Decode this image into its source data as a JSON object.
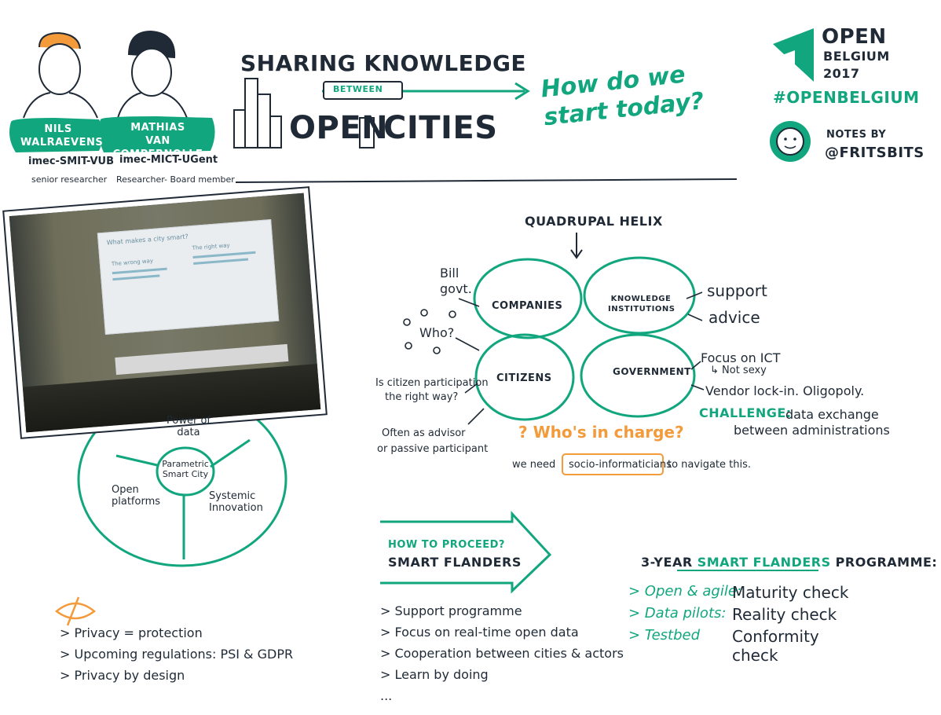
{
  "header": {
    "speaker1": {
      "name_line1": "NILS",
      "name_line2": "WALRAEVENS",
      "affiliation": "imec-SMIT-VUB",
      "role": "senior researcher"
    },
    "speaker2": {
      "name_line1": "MATHIAS",
      "name_line2": "VAN COMPERNOLLE",
      "affiliation": "imec-MICT-UGent",
      "role": "Researcher- Board member"
    },
    "title_line1": "SHARING KNOWLEDGE",
    "title_between": "BETWEEN",
    "title_open": "OPEN",
    "title_cities": "CITIES",
    "question": "How do we start today?",
    "event": {
      "line1": "OPEN",
      "line2": "BELGIUM",
      "line3": "2017",
      "hashtag": "#OPENBELGIUM"
    },
    "notes_by": {
      "label": "NOTES BY",
      "handle": "@FRITSBITS"
    }
  },
  "photo": {
    "slide_title": "What makes a city smart?",
    "wrong_way": "The wrong way",
    "right_way": "The right way"
  },
  "circle_diagram": {
    "power": "Power of data",
    "center": "Parametric Smart City",
    "open": "Open platforms",
    "systemic": "Systemic Innovation"
  },
  "helix": {
    "title": "QUADRUPAL HELIX",
    "companies": "COMPANIES",
    "knowledge": "KNOWLEDGE INSTITUTIONS",
    "citizens": "CITIZENS",
    "government": "GOVERNMENT",
    "bill": "Bill govt.",
    "who": "Who?",
    "support": "support",
    "advice": "advice",
    "focus": "Focus on ICT",
    "not_sexy": "↳ Not sexy",
    "vendor": "Vendor lock-in. Oligopoly.",
    "challenge_label": "CHALLENGE:",
    "challenge_text1": "data exchange",
    "challenge_text2": "between administrations",
    "participation1": "Is citizen participation",
    "participation2": "the right way?",
    "advisor1": "Often as advisor",
    "advisor2": "or passive participant",
    "whos_in_charge": "? Who's in charge?",
    "we_need": "we need",
    "socio": "socio-informaticians",
    "navigate": "to navigate this."
  },
  "privacy": {
    "items": [
      "> Privacy = protection",
      "> Upcoming regulations: PSI & GDPR",
      "> Privacy by design"
    ]
  },
  "proceed": {
    "label": "HOW TO PROCEED?",
    "title": "SMART FLANDERS",
    "items": [
      "> Support programme",
      "> Focus on real-time open data",
      "> Cooperation between cities & actors",
      "> Learn by doing",
      "..."
    ]
  },
  "programme": {
    "title_prefix": "3-YEAR",
    "title_highlight": "SMART FLANDERS",
    "title_suffix": "PROGRAMME:",
    "rows": [
      {
        "left": "> Open & agile:",
        "right": "Maturity check"
      },
      {
        "left": "> Data pilots:",
        "right": "Reality check"
      },
      {
        "left": "> Testbed",
        "right": "Conformity check"
      }
    ]
  },
  "colors": {
    "green": "#12a67e",
    "orange": "#f39a3b",
    "ink": "#1f2a36"
  }
}
